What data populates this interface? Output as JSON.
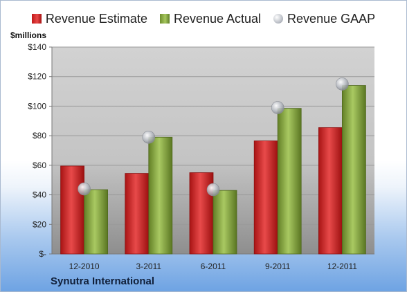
{
  "legend": {
    "estimate": "Revenue Estimate",
    "actual": "Revenue Actual",
    "gaap": "Revenue GAAP"
  },
  "colors": {
    "estimate": "#d42a2a",
    "actual": "#8fb04a",
    "gaap": "#b8bcc4",
    "plot_bg": "#c8c8c8"
  },
  "chart_data": {
    "type": "bar",
    "ylabel": "$millions",
    "company": "Synutra International",
    "categories": [
      "12-2010",
      "3-2011",
      "6-2011",
      "9-2011",
      "12-2011"
    ],
    "yticks": [
      "$-",
      "$20",
      "$40",
      "$60",
      "$80",
      "$100",
      "$120",
      "$140"
    ],
    "ylim": [
      0,
      140
    ],
    "grid": true,
    "legend_position": "top",
    "series": [
      {
        "name": "Revenue Estimate",
        "values": [
          59.5,
          54.5,
          55,
          76.5,
          85.5
        ]
      },
      {
        "name": "Revenue Actual",
        "values": [
          43.5,
          79,
          43,
          98.5,
          114
        ]
      },
      {
        "name": "Revenue GAAP",
        "values": [
          44,
          79,
          43.5,
          99,
          115
        ]
      }
    ]
  }
}
